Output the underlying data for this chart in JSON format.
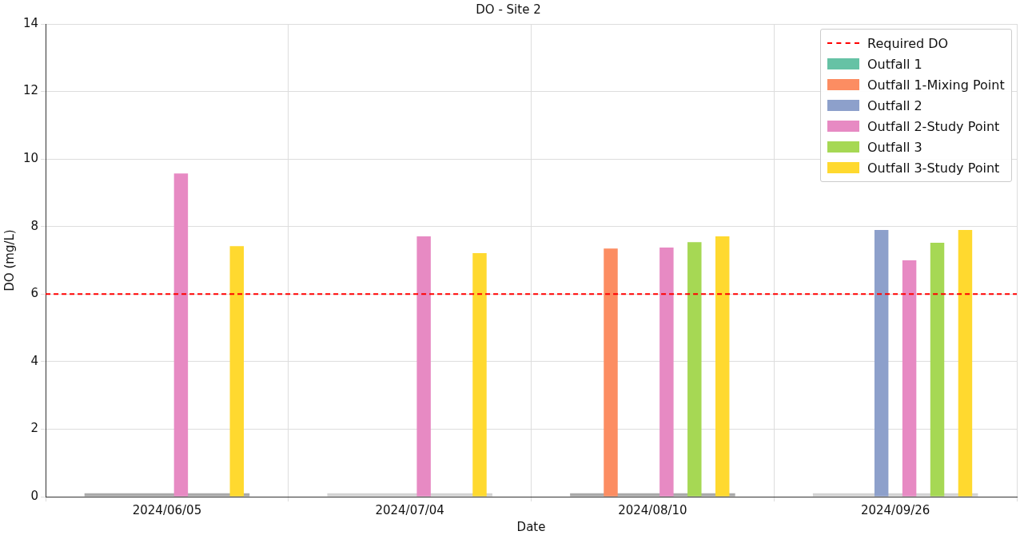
{
  "chart_data": {
    "type": "bar",
    "title": "DO - Site 2",
    "xlabel": "Date",
    "ylabel": "DO (mg/L)",
    "categories": [
      "2024/06/05",
      "2024/07/04",
      "2024/08/10",
      "2024/09/26"
    ],
    "series": [
      {
        "colors": [
          "#a9a9a9",
          "#d3d3d3",
          "#a9a9a9",
          "#d3d3d3"
        ],
        "values": [
          0.1,
          0.1,
          0.1,
          0.1
        ]
      },
      {
        "name": "Outfall 1",
        "color": "#66c2a5",
        "values": [
          null,
          null,
          null,
          null
        ]
      },
      {
        "name": "Outfall 1-Mixing Point",
        "color": "#fc8d62",
        "values": [
          null,
          null,
          7.35,
          null
        ]
      },
      {
        "name": "Outfall 2",
        "color": "#8da0cb",
        "values": [
          null,
          null,
          null,
          7.9
        ]
      },
      {
        "name": "Outfall 2-Study Point",
        "color": "#e78ac3",
        "values": [
          9.57,
          7.71,
          7.38,
          7.0
        ]
      },
      {
        "name": "Outfall 3",
        "color": "#a6d854",
        "values": [
          null,
          null,
          7.54,
          7.52
        ]
      },
      {
        "name": "Outfall 3-Study Point",
        "color": "#ffd92f",
        "values": [
          7.42,
          7.21,
          7.71,
          7.9
        ]
      }
    ],
    "ylim": [
      0,
      14
    ],
    "yticks": [
      0,
      2,
      4,
      6,
      8,
      10,
      12,
      14
    ],
    "ref_lines": [
      {
        "axis": "y",
        "value": 6,
        "label": "Required DO",
        "color": "#ff0000",
        "line_style": "dashed"
      }
    ],
    "grid": true,
    "legend": "top right"
  }
}
